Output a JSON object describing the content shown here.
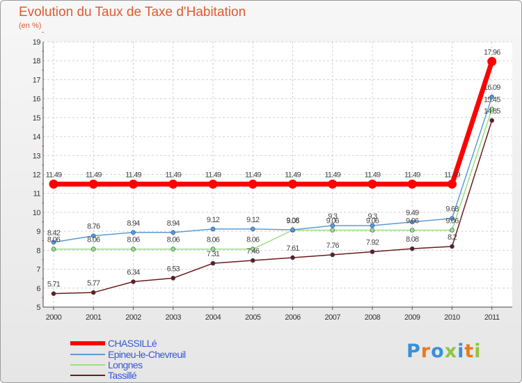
{
  "chart_data": {
    "type": "line",
    "title": "Evolution du Taux de Taxe d'Habitation",
    "subtitle": "(en %)",
    "categories": [
      "2000",
      "2001",
      "2002",
      "2003",
      "2004",
      "2005",
      "2006",
      "2007",
      "2008",
      "2009",
      "2010",
      "2011"
    ],
    "ylim": [
      5,
      19
    ],
    "yticks": [
      "5",
      "6",
      "7",
      "8",
      "9",
      "10",
      "11",
      "12",
      "13",
      "14",
      "15",
      "16",
      "17",
      "18",
      "19"
    ],
    "grid": true,
    "legend_position": "bottom-left",
    "series": [
      {
        "name": "CHASSILLé",
        "color": "#ff0000",
        "values": [
          11.49,
          11.49,
          11.49,
          11.49,
          11.49,
          11.49,
          11.49,
          11.49,
          11.49,
          11.49,
          11.49,
          17.96
        ],
        "labels": [
          "11.49",
          "11.49",
          "11.49",
          "11.49",
          "11.49",
          "11.49",
          "11.49",
          "11.49",
          "11.49",
          "11.49",
          "11.49",
          "17.96"
        ]
      },
      {
        "name": "Epineu-le-Chevreuil",
        "color": "#5b9bd5",
        "values": [
          8.42,
          8.76,
          8.94,
          8.94,
          9.12,
          9.12,
          9.08,
          9.3,
          9.3,
          9.49,
          9.68,
          16.09
        ],
        "labels": [
          "8.42",
          "8.76",
          "8.94",
          "8.94",
          "9.12",
          "9.12",
          "9.08",
          "9.3",
          "9.3",
          "9.49",
          "9.68",
          "16.09"
        ]
      },
      {
        "name": "Longnes",
        "color": "#99e07a",
        "values": [
          8.06,
          8.06,
          8.06,
          8.06,
          8.06,
          8.06,
          9.06,
          9.06,
          9.06,
          9.06,
          9.06,
          15.45
        ],
        "labels": [
          "8.06",
          "8.06",
          "8.06",
          "8.06",
          "8.06",
          "8.06",
          "9.06",
          "9.06",
          "9.06",
          "9.06",
          "9.06",
          "15.45"
        ]
      },
      {
        "name": "Tassillé",
        "color": "#6b1a1a",
        "values": [
          5.71,
          5.77,
          6.34,
          6.53,
          7.31,
          7.46,
          7.61,
          7.76,
          7.92,
          8.08,
          8.2,
          14.85
        ],
        "labels": [
          "5.71",
          "5.77",
          "6.34",
          "6.53",
          "7.31",
          "7.46",
          "7.61",
          "7.76",
          "7.92",
          "8.08",
          "8.2",
          "14.85"
        ]
      }
    ]
  },
  "logo": {
    "letters": [
      "P",
      "r",
      "o",
      "x",
      "i",
      "t",
      "i"
    ],
    "colors": [
      "#3a8fd8",
      "#e87a1e",
      "#3a8fd8",
      "#8cc63f",
      "#3a8fd8",
      "#e87a1e",
      "#8cc63f"
    ]
  }
}
